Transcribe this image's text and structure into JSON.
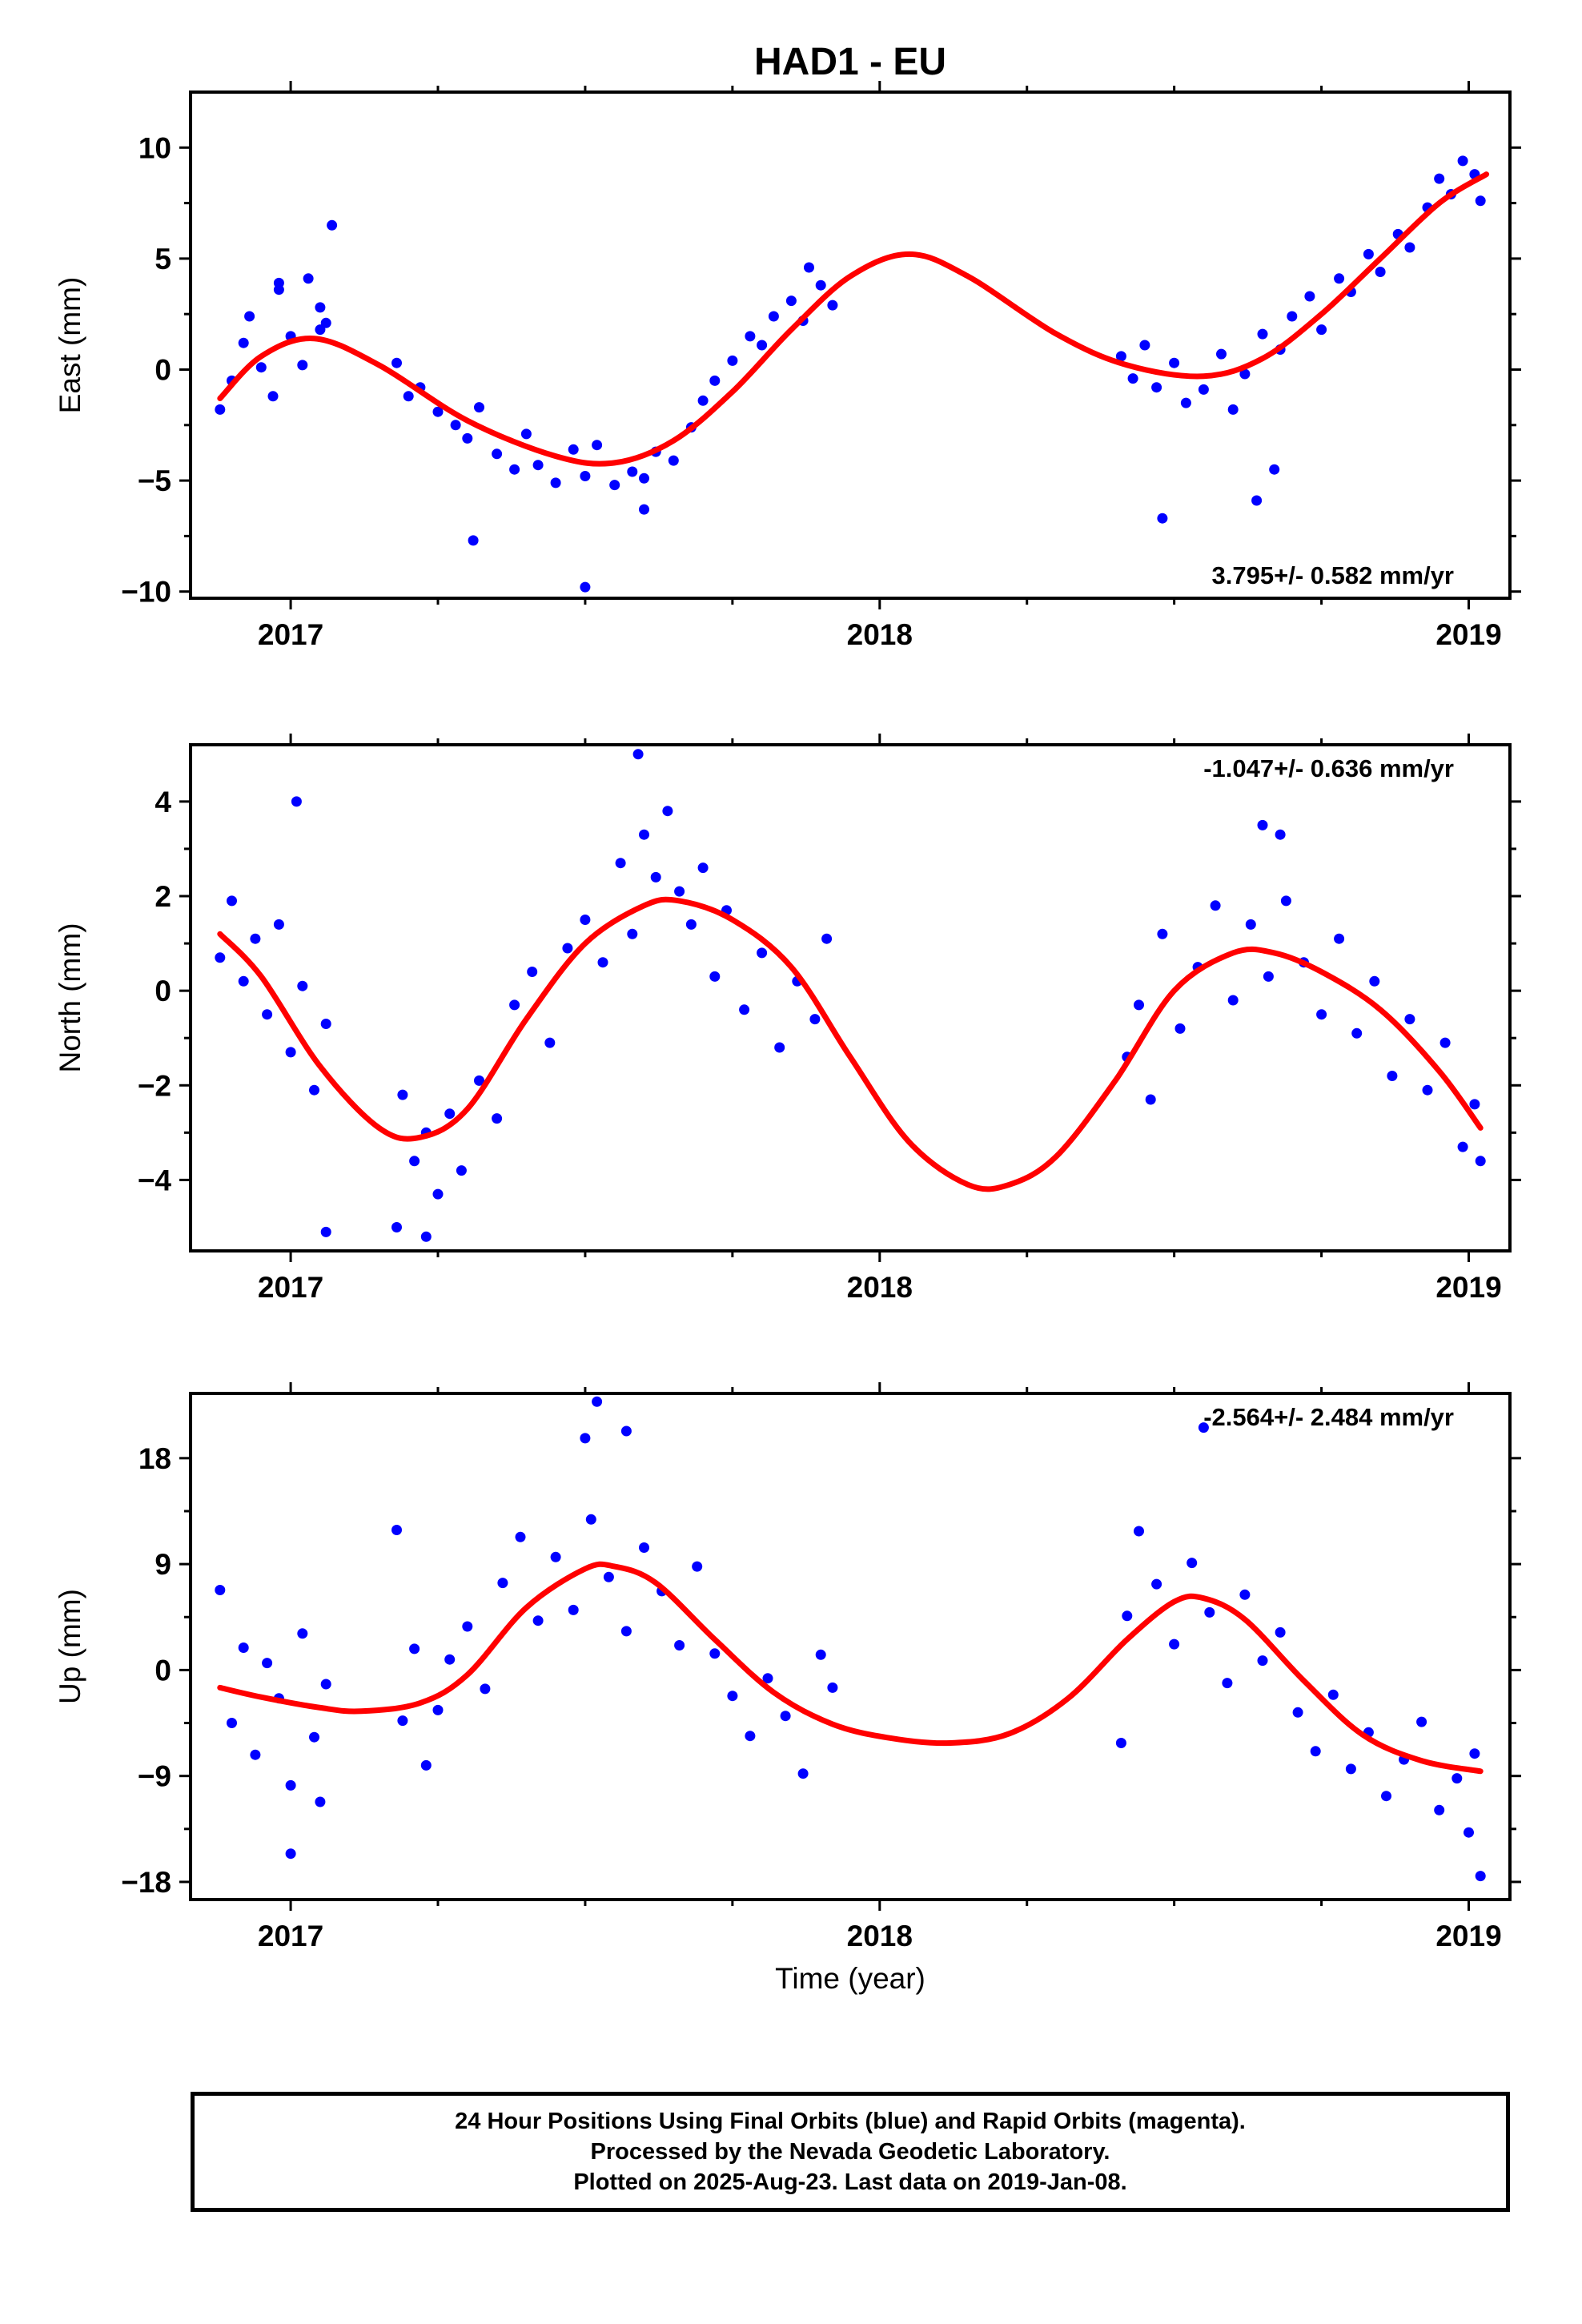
{
  "chart_data": {
    "type": "scatter",
    "title": "HAD1 - EU",
    "xlabel": "Time (year)",
    "x_ticks": [
      "2017",
      "2018",
      "2019"
    ],
    "x_tick_values": [
      2017,
      2018,
      2019
    ],
    "xlim": [
      2016.83,
      2019.07
    ],
    "series_colors": {
      "points": "#0000ff",
      "fit": "#ff0000"
    },
    "panels": [
      {
        "id": "east",
        "ylabel": "East (mm)",
        "ylim": [
          -10.3,
          12.5
        ],
        "y_ticks": [
          10,
          5,
          0,
          -5,
          -10
        ],
        "y_tick_labels": [
          "10",
          "5",
          "0",
          "−5",
          "−10"
        ],
        "rate_label": "3.795+/- 0.582 mm/yr",
        "rate_position": "bottom-right",
        "fit_curve": {
          "x": [
            2016.88,
            2016.95,
            2017.04,
            2017.15,
            2017.3,
            2017.45,
            2017.55,
            2017.65,
            2017.75,
            2017.85,
            2017.95,
            2018.05,
            2018.15,
            2018.3,
            2018.42,
            2018.55,
            2018.65,
            2018.75,
            2018.85,
            2018.95,
            2019.03
          ],
          "y": [
            -1.3,
            0.6,
            1.4,
            0.2,
            -2.3,
            -3.9,
            -4.2,
            -3.2,
            -1.0,
            1.8,
            4.2,
            5.2,
            4.2,
            1.6,
            0.2,
            -0.3,
            0.5,
            2.5,
            5.0,
            7.5,
            8.8
          ]
        },
        "points": {
          "x": [
            2016.88,
            2016.9,
            2016.92,
            2016.93,
            2016.95,
            2016.97,
            2016.98,
            2017.0,
            2017.02,
            2017.03,
            2017.05,
            2017.06,
            2017.07,
            2017.18,
            2017.2,
            2017.22,
            2017.25,
            2017.28,
            2017.3,
            2017.32,
            2017.35,
            2017.38,
            2017.4,
            2017.42,
            2017.45,
            2017.48,
            2017.5,
            2017.52,
            2017.55,
            2017.58,
            2017.6,
            2017.62,
            2017.65,
            2017.68,
            2017.7,
            2017.72,
            2017.75,
            2017.78,
            2017.8,
            2017.82,
            2017.85,
            2017.87,
            2017.88,
            2017.9,
            2017.92,
            2018.41,
            2018.43,
            2018.45,
            2018.47,
            2018.5,
            2018.52,
            2018.55,
            2018.58,
            2018.6,
            2018.62,
            2018.65,
            2018.68,
            2018.7,
            2018.73,
            2018.75,
            2018.78,
            2018.8,
            2018.83,
            2018.85,
            2018.88,
            2018.9,
            2018.93,
            2018.95,
            2018.97,
            2018.99,
            2019.01,
            2019.02,
            2017.31,
            2017.5,
            2017.6,
            2018.48,
            2018.64,
            2018.67,
            2016.98,
            2017.05
          ],
          "y": [
            -1.8,
            -0.5,
            1.2,
            2.4,
            0.1,
            -1.2,
            3.9,
            1.5,
            0.2,
            4.1,
            2.8,
            2.1,
            6.5,
            0.3,
            -1.2,
            -0.8,
            -1.9,
            -2.5,
            -3.1,
            -1.7,
            -3.8,
            -4.5,
            -2.9,
            -4.3,
            -5.1,
            -3.6,
            -4.8,
            -3.4,
            -5.2,
            -4.6,
            -4.9,
            -3.7,
            -4.1,
            -2.6,
            -1.4,
            -0.5,
            0.4,
            1.5,
            1.1,
            2.4,
            3.1,
            2.2,
            4.6,
            3.8,
            2.9,
            0.6,
            -0.4,
            1.1,
            -0.8,
            0.3,
            -1.5,
            -0.9,
            0.7,
            -1.8,
            -0.2,
            1.6,
            0.9,
            2.4,
            3.3,
            1.8,
            4.1,
            3.5,
            5.2,
            4.4,
            6.1,
            5.5,
            7.3,
            8.6,
            7.9,
            9.4,
            8.8,
            7.6,
            -7.7,
            -9.8,
            -6.3,
            -6.7,
            -5.9,
            -4.5,
            3.6,
            1.8
          ]
        }
      },
      {
        "id": "north",
        "ylabel": "North (mm)",
        "ylim": [
          -5.5,
          5.2
        ],
        "y_ticks": [
          4,
          2,
          0,
          -2,
          -4
        ],
        "y_tick_labels": [
          "4",
          "2",
          "0",
          "−2",
          "−4"
        ],
        "rate_label": "-1.047+/- 0.636 mm/yr",
        "rate_position": "top-right",
        "fit_curve": {
          "x": [
            2016.88,
            2016.95,
            2017.05,
            2017.15,
            2017.22,
            2017.3,
            2017.4,
            2017.5,
            2017.6,
            2017.66,
            2017.75,
            2017.85,
            2017.95,
            2018.05,
            2018.15,
            2018.22,
            2018.3,
            2018.4,
            2018.5,
            2018.6,
            2018.67,
            2018.75,
            2018.85,
            2018.95,
            2019.02
          ],
          "y": [
            1.2,
            0.3,
            -1.6,
            -2.9,
            -3.1,
            -2.5,
            -0.6,
            1.0,
            1.8,
            1.9,
            1.5,
            0.5,
            -1.4,
            -3.2,
            -4.1,
            -4.1,
            -3.5,
            -1.9,
            0.0,
            0.8,
            0.8,
            0.4,
            -0.4,
            -1.7,
            -2.9
          ]
        },
        "points": {
          "x": [
            2016.88,
            2016.9,
            2016.92,
            2016.94,
            2016.96,
            2016.98,
            2017.0,
            2017.02,
            2017.04,
            2017.06,
            2017.19,
            2017.21,
            2017.23,
            2017.25,
            2017.27,
            2017.29,
            2017.32,
            2017.35,
            2017.38,
            2017.41,
            2017.44,
            2017.47,
            2017.5,
            2017.53,
            2017.56,
            2017.58,
            2017.6,
            2017.62,
            2017.64,
            2017.66,
            2017.68,
            2017.7,
            2017.72,
            2017.74,
            2017.77,
            2017.8,
            2017.83,
            2017.86,
            2017.89,
            2017.91,
            2018.42,
            2018.44,
            2018.46,
            2018.48,
            2018.51,
            2018.54,
            2018.57,
            2018.6,
            2018.63,
            2018.66,
            2018.69,
            2018.72,
            2018.75,
            2018.78,
            2018.81,
            2018.84,
            2018.87,
            2018.9,
            2018.93,
            2018.96,
            2018.99,
            2019.01,
            2019.02,
            2017.01,
            2017.59,
            2018.65,
            2018.68,
            2017.06,
            2017.18,
            2017.23
          ],
          "y": [
            0.7,
            1.9,
            0.2,
            1.1,
            -0.5,
            1.4,
            -1.3,
            0.1,
            -2.1,
            -0.7,
            -2.2,
            -3.6,
            -3.0,
            -4.3,
            -2.6,
            -3.8,
            -1.9,
            -2.7,
            -0.3,
            0.4,
            -1.1,
            0.9,
            1.5,
            0.6,
            2.7,
            1.2,
            3.3,
            2.4,
            3.8,
            2.1,
            1.4,
            2.6,
            0.3,
            1.7,
            -0.4,
            0.8,
            -1.2,
            0.2,
            -0.6,
            1.1,
            -1.4,
            -0.3,
            -2.3,
            1.2,
            -0.8,
            0.5,
            1.8,
            -0.2,
            1.4,
            0.3,
            1.9,
            0.6,
            -0.5,
            1.1,
            -0.9,
            0.2,
            -1.8,
            -0.6,
            -2.1,
            -1.1,
            -3.3,
            -2.4,
            -3.6,
            4.0,
            5.0,
            3.5,
            3.3,
            -5.1,
            -5.0,
            -5.2
          ]
        }
      },
      {
        "id": "up",
        "ylabel": "Up (mm)",
        "ylim": [
          -19.5,
          23.5
        ],
        "y_ticks": [
          18,
          9,
          0,
          -9,
          -18
        ],
        "y_tick_labels": [
          "18",
          "9",
          "0",
          "−9",
          "−18"
        ],
        "rate_label": "-2.564+/- 2.484 mm/yr",
        "rate_position": "top-right",
        "fit_curve": {
          "x": [
            2016.88,
            2016.95,
            2017.05,
            2017.12,
            2017.22,
            2017.3,
            2017.4,
            2017.5,
            2017.55,
            2017.62,
            2017.72,
            2017.82,
            2017.92,
            2018.02,
            2018.12,
            2018.22,
            2018.32,
            2018.42,
            2018.5,
            2018.55,
            2018.62,
            2018.72,
            2018.82,
            2018.92,
            2019.02
          ],
          "y": [
            -1.5,
            -2.3,
            -3.2,
            -3.5,
            -2.8,
            -0.4,
            5.3,
            8.6,
            8.8,
            7.4,
            2.6,
            -1.9,
            -4.6,
            -5.8,
            -6.2,
            -5.4,
            -2.4,
            2.6,
            5.8,
            6.1,
            4.3,
            -0.9,
            -5.5,
            -7.7,
            -8.6
          ]
        },
        "points": {
          "x": [
            2016.88,
            2016.9,
            2016.92,
            2016.94,
            2016.96,
            2016.98,
            2017.0,
            2017.02,
            2017.04,
            2017.06,
            2017.19,
            2017.21,
            2017.23,
            2017.25,
            2017.27,
            2017.3,
            2017.33,
            2017.36,
            2017.39,
            2017.42,
            2017.45,
            2017.48,
            2017.51,
            2017.54,
            2017.57,
            2017.6,
            2017.63,
            2017.66,
            2017.69,
            2017.72,
            2017.75,
            2017.78,
            2017.81,
            2017.84,
            2017.87,
            2017.9,
            2017.92,
            2018.42,
            2018.44,
            2018.47,
            2018.5,
            2018.53,
            2018.56,
            2018.59,
            2018.62,
            2018.65,
            2018.68,
            2018.71,
            2018.74,
            2018.77,
            2018.8,
            2018.83,
            2018.86,
            2018.89,
            2018.92,
            2018.95,
            2018.98,
            2019.0,
            2019.01,
            2019.02,
            2017.5,
            2017.52,
            2017.57,
            2018.55,
            2018.41,
            2017.0,
            2017.05,
            2017.18
          ],
          "y": [
            6.8,
            -4.5,
            1.9,
            -7.2,
            0.6,
            -2.4,
            -9.8,
            3.1,
            -5.7,
            -1.2,
            -4.3,
            1.8,
            -8.1,
            -3.4,
            0.9,
            3.7,
            -1.6,
            7.4,
            11.3,
            4.2,
            9.6,
            5.1,
            12.8,
            7.9,
            3.3,
            10.4,
            6.7,
            2.1,
            8.8,
            1.4,
            -2.2,
            -5.6,
            -0.7,
            -3.9,
            -8.8,
            1.3,
            -1.5,
            4.6,
            11.8,
            7.3,
            2.2,
            9.1,
            4.9,
            -1.1,
            6.4,
            0.8,
            3.2,
            -3.6,
            -6.9,
            -2.1,
            -8.4,
            -5.3,
            -10.7,
            -7.6,
            -4.4,
            -11.9,
            -9.2,
            -13.8,
            -7.1,
            -17.5,
            19.7,
            22.8,
            20.3,
            20.6,
            -6.2,
            -15.6,
            -11.2,
            11.9
          ]
        }
      }
    ]
  },
  "footer": {
    "line1": "24 Hour Positions Using Final Orbits (blue) and Rapid Orbits (magenta).",
    "line2": "Processed by the Nevada Geodetic Laboratory.",
    "line3": "Plotted on 2025-Aug-23. Last data on 2019-Jan-08."
  }
}
